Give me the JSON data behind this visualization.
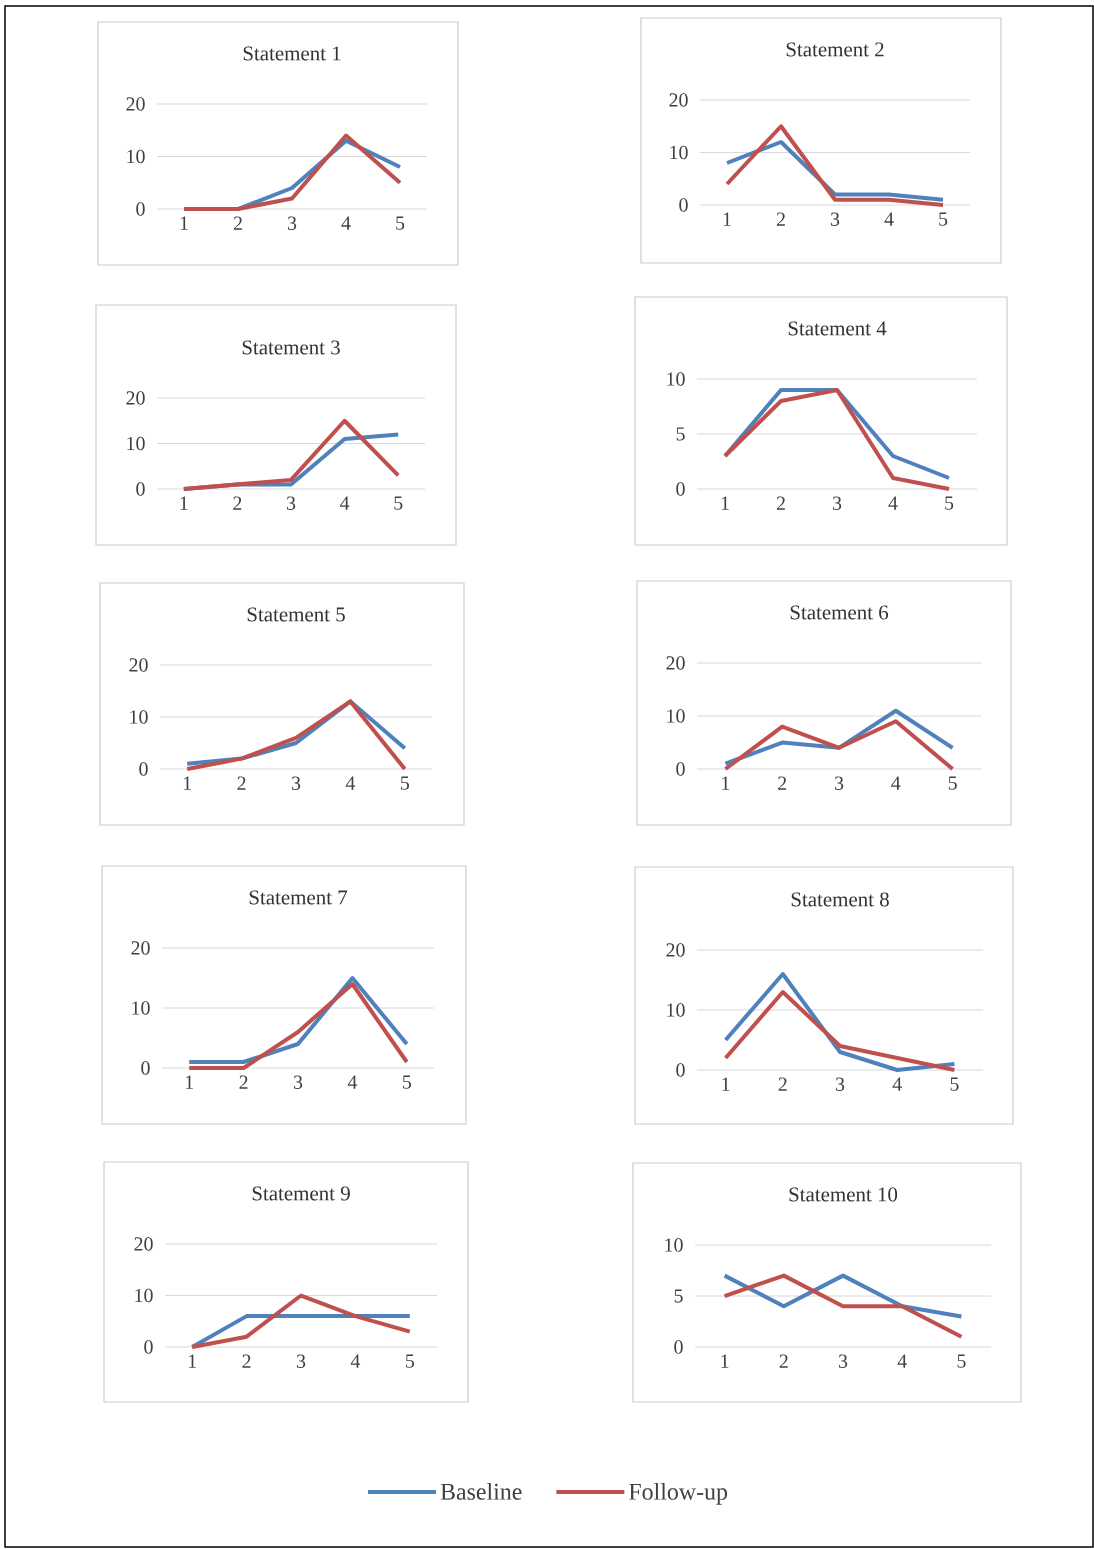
{
  "chart_data": [
    {
      "type": "line",
      "title": "Statement 1",
      "categories": [
        "1",
        "2",
        "3",
        "4",
        "5"
      ],
      "ylim": [
        0,
        20
      ],
      "yticks": [
        0,
        10,
        20
      ],
      "grid": "y",
      "legend": false,
      "series": [
        {
          "color": "#4f81bd",
          "values": [
            0,
            0,
            4,
            13,
            8
          ]
        },
        {
          "color": "#c0504d",
          "values": [
            0,
            0,
            2,
            14,
            5
          ]
        }
      ]
    },
    {
      "type": "line",
      "title": "Statement 2",
      "categories": [
        "1",
        "2",
        "3",
        "4",
        "5"
      ],
      "ylim": [
        0,
        20
      ],
      "yticks": [
        0,
        10,
        20
      ],
      "grid": "y",
      "legend": false,
      "series": [
        {
          "color": "#4f81bd",
          "values": [
            8,
            12,
            2,
            2,
            1
          ]
        },
        {
          "color": "#c0504d",
          "values": [
            4,
            15,
            1,
            1,
            0
          ]
        }
      ]
    },
    {
      "type": "line",
      "title": "Statement 3",
      "categories": [
        "1",
        "2",
        "3",
        "4",
        "5"
      ],
      "ylim": [
        0,
        20
      ],
      "yticks": [
        0,
        10,
        20
      ],
      "grid": "y",
      "legend": false,
      "series": [
        {
          "color": "#4f81bd",
          "values": [
            0,
            1,
            1,
            11,
            12
          ]
        },
        {
          "color": "#c0504d",
          "values": [
            0,
            1,
            2,
            15,
            3
          ]
        }
      ]
    },
    {
      "type": "line",
      "title": "Statement 4",
      "categories": [
        "1",
        "2",
        "3",
        "4",
        "5"
      ],
      "ylim": [
        0,
        10
      ],
      "yticks": [
        0,
        5,
        10
      ],
      "grid": "y",
      "legend": false,
      "series": [
        {
          "color": "#4f81bd",
          "values": [
            3,
            9,
            9,
            3,
            1
          ]
        },
        {
          "color": "#c0504d",
          "values": [
            3,
            8,
            9,
            1,
            0
          ]
        }
      ]
    },
    {
      "type": "line",
      "title": "Statement 5",
      "categories": [
        "1",
        "2",
        "3",
        "4",
        "5"
      ],
      "ylim": [
        0,
        20
      ],
      "yticks": [
        0,
        10,
        20
      ],
      "grid": "y",
      "legend": false,
      "series": [
        {
          "color": "#4f81bd",
          "values": [
            1,
            2,
            5,
            13,
            4
          ]
        },
        {
          "color": "#c0504d",
          "values": [
            0,
            2,
            6,
            13,
            0
          ]
        }
      ]
    },
    {
      "type": "line",
      "title": "Statement 6",
      "categories": [
        "1",
        "2",
        "3",
        "4",
        "5"
      ],
      "ylim": [
        0,
        20
      ],
      "yticks": [
        0,
        10,
        20
      ],
      "grid": "y",
      "legend": false,
      "series": [
        {
          "color": "#4f81bd",
          "values": [
            1,
            5,
            4,
            11,
            4
          ]
        },
        {
          "color": "#c0504d",
          "values": [
            0,
            8,
            4,
            9,
            0
          ]
        }
      ]
    },
    {
      "type": "line",
      "title": "Statement 7",
      "categories": [
        "1",
        "2",
        "3",
        "4",
        "5"
      ],
      "ylim": [
        0,
        20
      ],
      "yticks": [
        0,
        10,
        20
      ],
      "grid": "y",
      "legend": false,
      "series": [
        {
          "color": "#4f81bd",
          "values": [
            1,
            1,
            4,
            15,
            4
          ]
        },
        {
          "color": "#c0504d",
          "values": [
            0,
            0,
            6,
            14,
            1
          ]
        }
      ]
    },
    {
      "type": "line",
      "title": "Statement 8",
      "categories": [
        "1",
        "2",
        "3",
        "4",
        "5"
      ],
      "ylim": [
        0,
        20
      ],
      "yticks": [
        0,
        10,
        20
      ],
      "grid": "y",
      "legend": false,
      "series": [
        {
          "color": "#4f81bd",
          "values": [
            5,
            16,
            3,
            0,
            1
          ]
        },
        {
          "color": "#c0504d",
          "values": [
            2,
            13,
            4,
            2,
            0
          ]
        }
      ]
    },
    {
      "type": "line",
      "title": "Statement 9",
      "categories": [
        "1",
        "2",
        "3",
        "4",
        "5"
      ],
      "ylim": [
        0,
        20
      ],
      "yticks": [
        0,
        10,
        20
      ],
      "grid": "y",
      "legend": false,
      "series": [
        {
          "color": "#4f81bd",
          "values": [
            0,
            6,
            6,
            6,
            6
          ]
        },
        {
          "color": "#c0504d",
          "values": [
            0,
            2,
            10,
            6,
            3
          ]
        }
      ]
    },
    {
      "type": "line",
      "title": "Statement 10",
      "categories": [
        "1",
        "2",
        "3",
        "4",
        "5"
      ],
      "ylim": [
        0,
        10
      ],
      "yticks": [
        0,
        5,
        10
      ],
      "grid": "y",
      "legend": "bottom",
      "series": [
        {
          "name": "Baseline",
          "color": "#4f81bd",
          "values": [
            7,
            4,
            7,
            4,
            3
          ]
        },
        {
          "name": "Follow-up",
          "color": "#c0504d",
          "values": [
            5,
            7,
            4,
            4,
            1
          ]
        }
      ]
    }
  ]
}
